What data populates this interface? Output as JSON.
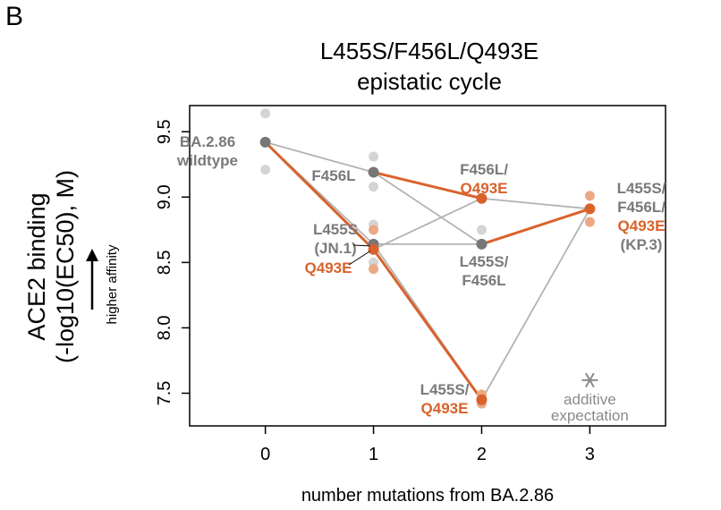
{
  "panel_letter": "B",
  "chart_data": {
    "type": "line",
    "title": [
      "L455S/F456L/Q493E",
      "epistatic cycle"
    ],
    "xlabel": "number mutations from BA.2.86",
    "ylabel": [
      "ACE2 binding",
      "(-log10(EC50), M)"
    ],
    "arrow_label": "higher affinity",
    "x_ticks": [
      "0",
      "1",
      "2",
      "3"
    ],
    "y_ticks": [
      "7.5",
      "8.0",
      "8.5",
      "9.0",
      "9.5"
    ],
    "xlim": [
      -0.7,
      3.7
    ],
    "ylim": [
      7.25,
      9.7
    ],
    "colors": {
      "highlight": "#d9622b",
      "highlight_light": "#eba884",
      "gray": "#777777",
      "gray_light": "#d4d4d4",
      "line_gray": "#b3b3b3",
      "label_gray": "#7a7a7a"
    },
    "nodes": [
      {
        "id": "wt",
        "x": 0,
        "y": 9.42,
        "reps": [
          9.64,
          9.21
        ],
        "highlight": false,
        "label": [
          "BA.2.86",
          "wildtype"
        ]
      },
      {
        "id": "f456l",
        "x": 1,
        "y": 9.19,
        "reps": [
          9.31,
          9.08
        ],
        "highlight": false,
        "label": [
          "F456L"
        ]
      },
      {
        "id": "l455s",
        "x": 1,
        "y": 8.64,
        "reps": [
          8.79,
          8.5
        ],
        "highlight": false,
        "label": [
          "L455S",
          "(JN.1)"
        ]
      },
      {
        "id": "q493e",
        "x": 1,
        "y": 8.6,
        "reps": [
          8.75,
          8.45
        ],
        "highlight": true,
        "label": [
          "Q493E"
        ]
      },
      {
        "id": "f456l_q493e",
        "x": 2,
        "y": 8.99,
        "reps": [],
        "highlight": true,
        "label": [
          "F456L/",
          "Q493E"
        ]
      },
      {
        "id": "l455s_f456l",
        "x": 2,
        "y": 8.64,
        "reps": [
          8.75
        ],
        "highlight": false,
        "label": [
          "L455S/",
          "F456L"
        ]
      },
      {
        "id": "l455s_q493e",
        "x": 2,
        "y": 7.45,
        "reps": [
          7.49,
          7.42
        ],
        "highlight": true,
        "label": [
          "L455S/",
          "Q493E"
        ]
      },
      {
        "id": "triple",
        "x": 3,
        "y": 8.91,
        "reps": [
          9.01,
          8.81
        ],
        "highlight": true,
        "label": [
          "L455S/",
          "F456L/",
          "Q493E",
          "(KP.3)"
        ]
      }
    ],
    "edges": [
      {
        "from": "wt",
        "to": "f456l",
        "highlight": false
      },
      {
        "from": "wt",
        "to": "l455s",
        "highlight": false
      },
      {
        "from": "wt",
        "to": "q493e",
        "highlight": true
      },
      {
        "from": "f456l",
        "to": "f456l_q493e",
        "highlight": true
      },
      {
        "from": "f456l",
        "to": "l455s_f456l",
        "highlight": false
      },
      {
        "from": "l455s",
        "to": "l455s_f456l",
        "highlight": false
      },
      {
        "from": "l455s",
        "to": "l455s_q493e",
        "highlight": false
      },
      {
        "from": "q493e",
        "to": "f456l_q493e",
        "highlight": false
      },
      {
        "from": "q493e",
        "to": "l455s_q493e",
        "highlight": true
      },
      {
        "from": "f456l_q493e",
        "to": "triple",
        "highlight": false
      },
      {
        "from": "l455s_f456l",
        "to": "triple",
        "highlight": true
      },
      {
        "from": "l455s_q493e",
        "to": "triple",
        "highlight": false
      }
    ],
    "additive_expectation": {
      "x": 3,
      "y": 7.6,
      "label": [
        "additive",
        "expectation"
      ]
    }
  }
}
